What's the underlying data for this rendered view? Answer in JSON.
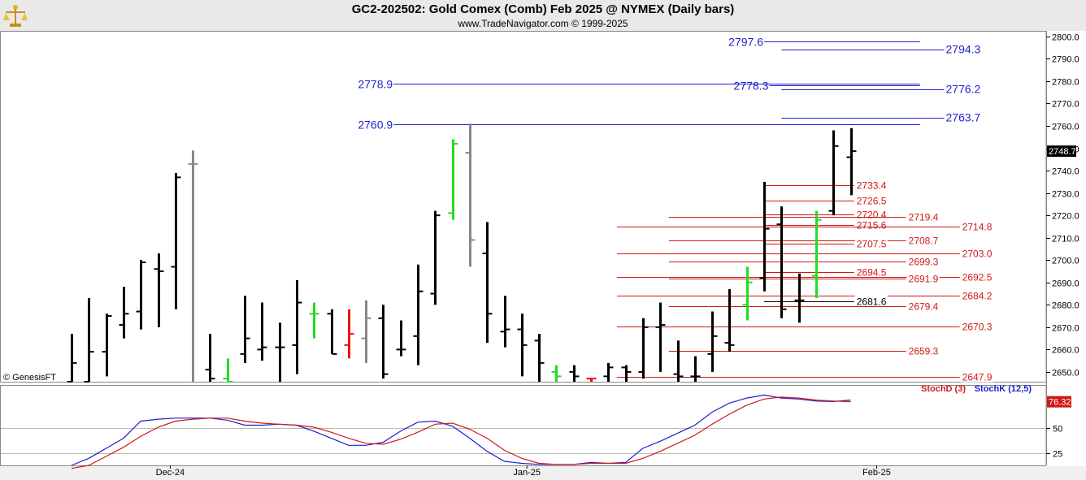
{
  "header": {
    "title": "GC2-202502:  Gold Comex (Comb) Feb 2025 @ NYMEX  (Daily bars)",
    "copyright": "www.TradeNavigator.com © 1999-2025",
    "watermark": "© GenesisFT"
  },
  "chart_data": {
    "type": "ohlc-bar",
    "ylim": [
      2645.6,
      2802.5
    ],
    "y_ticks": [
      2650.0,
      2660.0,
      2670.0,
      2680.0,
      2690.0,
      2700.0,
      2710.0,
      2720.0,
      2730.0,
      2740.0,
      2750.0,
      2760.0,
      2770.0,
      2780.0,
      2790.0,
      2800.0
    ],
    "last_price": "2748.7",
    "x_labels": [
      {
        "label": "Dec-24",
        "bar": 5.7
      },
      {
        "label": "Jan-25",
        "bar": 26.3
      },
      {
        "label": "Feb-25",
        "bar": 46.5
      }
    ],
    "colors": {
      "normal": "#000000",
      "up_signal": "#22dd22",
      "down_signal": "#ee1111",
      "neutral": "#888888",
      "blue": "#1f1fd0",
      "red": "#d01818"
    },
    "bars": [
      {
        "high": 2667,
        "low": 2645.6,
        "open": 2645.6,
        "close": 2654,
        "color": "normal"
      },
      {
        "high": 2683,
        "low": 2645.6,
        "open": 2645.6,
        "close": 2659,
        "color": "normal"
      },
      {
        "high": 2676,
        "low": 2648,
        "open": 2659,
        "close": 2675,
        "color": "normal"
      },
      {
        "high": 2688,
        "low": 2665,
        "open": 2671,
        "close": 2676,
        "color": "normal"
      },
      {
        "high": 2700,
        "low": 2669,
        "open": 2677,
        "close": 2699,
        "color": "normal"
      },
      {
        "high": 2703,
        "low": 2670,
        "open": 2696,
        "close": 2695,
        "color": "normal"
      },
      {
        "high": 2739,
        "low": 2678,
        "open": 2697,
        "close": 2737,
        "color": "normal"
      },
      {
        "high": 2749,
        "low": 2645.6,
        "open": 2743,
        "close": 2743,
        "color": "neutral"
      },
      {
        "high": 2667,
        "low": 2645.6,
        "open": 2651,
        "close": 2647,
        "color": "normal"
      },
      {
        "high": 2656,
        "low": 2645.6,
        "open": 2647,
        "close": 2645.6,
        "color": "up_signal"
      },
      {
        "high": 2684,
        "low": 2654,
        "open": 2658,
        "close": 2665,
        "color": "normal"
      },
      {
        "high": 2681,
        "low": 2655,
        "open": 2660,
        "close": 2661,
        "color": "normal"
      },
      {
        "high": 2672,
        "low": 2645.6,
        "open": 2661,
        "close": 2661,
        "color": "normal"
      },
      {
        "high": 2691,
        "low": 2649,
        "open": 2662,
        "close": 2681,
        "color": "normal"
      },
      {
        "high": 2681,
        "low": 2665,
        "open": 2676,
        "close": 2676,
        "color": "up_signal"
      },
      {
        "high": 2678,
        "low": 2658,
        "open": 2676,
        "close": 2658,
        "color": "normal"
      },
      {
        "high": 2678,
        "low": 2656,
        "open": 2662,
        "close": 2667,
        "color": "down_signal"
      },
      {
        "high": 2682,
        "low": 2654,
        "open": 2665,
        "close": 2674,
        "color": "neutral"
      },
      {
        "high": 2680,
        "low": 2647,
        "open": 2674,
        "close": 2649,
        "color": "normal"
      },
      {
        "high": 2673,
        "low": 2657,
        "open": 2660,
        "close": 2660,
        "color": "normal"
      },
      {
        "high": 2698,
        "low": 2653,
        "open": 2666,
        "close": 2686,
        "color": "normal"
      },
      {
        "high": 2722,
        "low": 2680,
        "open": 2685,
        "close": 2720,
        "color": "normal"
      },
      {
        "high": 2754,
        "low": 2718,
        "open": 2721,
        "close": 2752,
        "color": "up_signal"
      },
      {
        "high": 2761,
        "low": 2697,
        "open": 2748,
        "close": 2709,
        "color": "neutral"
      },
      {
        "high": 2717,
        "low": 2663,
        "open": 2703,
        "close": 2676,
        "color": "normal"
      },
      {
        "high": 2684,
        "low": 2661,
        "open": 2668,
        "close": 2669,
        "color": "normal"
      },
      {
        "high": 2676,
        "low": 2648,
        "open": 2669,
        "close": 2662,
        "color": "normal"
      },
      {
        "high": 2667,
        "low": 2645.6,
        "open": 2664,
        "close": 2654,
        "color": "normal"
      },
      {
        "high": 2653,
        "low": 2645.6,
        "open": 2650,
        "close": 2648,
        "color": "up_signal"
      },
      {
        "high": 2653,
        "low": 2645.6,
        "open": 2650,
        "close": 2648,
        "color": "normal"
      },
      {
        "high": 2647,
        "low": 2645.6,
        "open": 2647,
        "close": 2647,
        "color": "down_signal"
      },
      {
        "high": 2654,
        "low": 2645.6,
        "open": 2648,
        "close": 2652,
        "color": "normal"
      },
      {
        "high": 2653,
        "low": 2645.6,
        "open": 2652,
        "close": 2650,
        "color": "normal"
      },
      {
        "high": 2674,
        "low": 2647,
        "open": 2650,
        "close": 2670,
        "color": "normal"
      },
      {
        "high": 2681,
        "low": 2650,
        "open": 2670,
        "close": 2671,
        "color": "normal"
      },
      {
        "high": 2664,
        "low": 2645.6,
        "open": 2649,
        "close": 2648,
        "color": "normal"
      },
      {
        "high": 2657,
        "low": 2645.6,
        "open": 2648,
        "close": 2648,
        "color": "normal"
      },
      {
        "high": 2677,
        "low": 2650,
        "open": 2658,
        "close": 2666,
        "color": "normal"
      },
      {
        "high": 2687,
        "low": 2659,
        "open": 2663,
        "close": 2662,
        "color": "normal"
      },
      {
        "high": 2697,
        "low": 2673,
        "open": 2680,
        "close": 2690,
        "color": "up_signal"
      },
      {
        "high": 2735,
        "low": 2686,
        "open": 2692,
        "close": 2714,
        "color": "normal"
      },
      {
        "high": 2724,
        "low": 2674,
        "open": 2716,
        "close": 2678,
        "color": "normal"
      },
      {
        "high": 2694,
        "low": 2672,
        "open": 2682,
        "close": 2682,
        "color": "normal"
      },
      {
        "high": 2722,
        "low": 2683,
        "open": 2693,
        "close": 2718,
        "color": "up_signal"
      },
      {
        "high": 2758,
        "low": 2720,
        "open": 2722,
        "close": 2751,
        "color": "normal"
      },
      {
        "high": 2759,
        "low": 2729,
        "open": 2746,
        "close": 2748.7,
        "color": "normal"
      }
    ],
    "levels": [
      {
        "label": "2797.6",
        "value": 2797.6,
        "color": "blue",
        "from_bar": 40.0,
        "to_bar": 49.0,
        "label_side": "left"
      },
      {
        "label": "2794.3",
        "value": 2794.3,
        "color": "blue",
        "from_bar": 41.0,
        "to_bar": 50.4,
        "label_side": "right"
      },
      {
        "label": "2778.9",
        "value": 2778.9,
        "color": "blue",
        "from_bar": 18.6,
        "to_bar": 49.0,
        "label_side": "left"
      },
      {
        "label": "2778.3",
        "value": 2778.3,
        "color": "blue",
        "from_bar": 40.3,
        "to_bar": 49.0,
        "label_side": "left"
      },
      {
        "label": "2776.2",
        "value": 2776.2,
        "color": "blue",
        "from_bar": 41.0,
        "to_bar": 50.4,
        "label_side": "right"
      },
      {
        "label": "2760.9",
        "value": 2760.9,
        "color": "blue",
        "from_bar": 18.6,
        "to_bar": 49.0,
        "label_side": "left"
      },
      {
        "label": "2763.7",
        "value": 2763.7,
        "color": "blue",
        "from_bar": 41.0,
        "to_bar": 50.4,
        "label_side": "right"
      },
      {
        "label": "2733.4",
        "value": 2733.4,
        "color": "red",
        "from_bar": 40.0,
        "to_bar": 45.2,
        "label_side": "right"
      },
      {
        "label": "2726.5",
        "value": 2726.5,
        "color": "red",
        "from_bar": 40.0,
        "to_bar": 45.2,
        "label_side": "right"
      },
      {
        "label": "2720.4",
        "value": 2720.4,
        "color": "red",
        "from_bar": 40.0,
        "to_bar": 45.2,
        "label_side": "right"
      },
      {
        "label": "2719.4",
        "value": 2719.4,
        "color": "red",
        "from_bar": 34.5,
        "to_bar": 48.2,
        "label_side": "right"
      },
      {
        "label": "2715.6",
        "value": 2715.6,
        "color": "red",
        "from_bar": 40.0,
        "to_bar": 45.2,
        "label_side": "right"
      },
      {
        "label": "2714.8",
        "value": 2714.8,
        "color": "red",
        "from_bar": 31.5,
        "to_bar": 51.3,
        "label_side": "right"
      },
      {
        "label": "2708.7",
        "value": 2708.7,
        "color": "red",
        "from_bar": 34.5,
        "to_bar": 48.2,
        "label_side": "right"
      },
      {
        "label": "2707.5",
        "value": 2707.5,
        "color": "red",
        "from_bar": 40.0,
        "to_bar": 45.2,
        "label_side": "right"
      },
      {
        "label": "2703.0",
        "value": 2703.0,
        "color": "red",
        "from_bar": 31.5,
        "to_bar": 51.3,
        "label_side": "right"
      },
      {
        "label": "2699.3",
        "value": 2699.3,
        "color": "red",
        "from_bar": 34.5,
        "to_bar": 48.2,
        "label_side": "right"
      },
      {
        "label": "2694.5",
        "value": 2694.5,
        "color": "red",
        "from_bar": 40.0,
        "to_bar": 45.2,
        "label_side": "right"
      },
      {
        "label": "2692.5",
        "value": 2692.5,
        "color": "red",
        "from_bar": 31.5,
        "to_bar": 51.3,
        "label_side": "right"
      },
      {
        "label": "2691.9",
        "value": 2691.9,
        "color": "red",
        "from_bar": 34.5,
        "to_bar": 48.2,
        "label_side": "right"
      },
      {
        "label": "2684.2",
        "value": 2684.2,
        "color": "red",
        "from_bar": 31.5,
        "to_bar": 51.3,
        "label_side": "right"
      },
      {
        "label": "2681.6",
        "value": 2681.6,
        "color": "black",
        "from_bar": 40.0,
        "to_bar": 45.2,
        "label_side": "right"
      },
      {
        "label": "2679.4",
        "value": 2679.4,
        "color": "red",
        "from_bar": 34.5,
        "to_bar": 48.2,
        "label_side": "right"
      },
      {
        "label": "2670.3",
        "value": 2670.3,
        "color": "red",
        "from_bar": 31.5,
        "to_bar": 51.3,
        "label_side": "right"
      },
      {
        "label": "2659.3",
        "value": 2659.3,
        "color": "red",
        "from_bar": 34.5,
        "to_bar": 48.2,
        "label_side": "right"
      },
      {
        "label": "2647.9",
        "value": 2647.9,
        "color": "red",
        "from_bar": 31.5,
        "to_bar": 51.3,
        "label_side": "right"
      }
    ],
    "stochastic": {
      "legend": [
        "StochD (3)",
        "StochK (12,5)"
      ],
      "ylim": [
        13,
        93
      ],
      "y_ticks": [
        25,
        50
      ],
      "last_value": "76.32",
      "series": [
        {
          "name": "StochK (12,5)",
          "color": "blue",
          "values": [
            13,
            20,
            30,
            40,
            57,
            59,
            60,
            60,
            60,
            58,
            53,
            53,
            54,
            53,
            47,
            40,
            33,
            33,
            36,
            47,
            56,
            57,
            52,
            40,
            27,
            17,
            15,
            14,
            14,
            14,
            16,
            15,
            16,
            30,
            37,
            45,
            53,
            66,
            75,
            80,
            83,
            80,
            79,
            77,
            76.5,
            78
          ]
        },
        {
          "name": "StochD (3)",
          "color": "red",
          "values": [
            10,
            13,
            22,
            31,
            42,
            51,
            57,
            59,
            60,
            60,
            57,
            55,
            54,
            53,
            51,
            46,
            40,
            35,
            34,
            39,
            46,
            54,
            55,
            49,
            40,
            28,
            20,
            15,
            14,
            14,
            15,
            15,
            15,
            20,
            27,
            35,
            43,
            54,
            64,
            73,
            79,
            81,
            80,
            78,
            77,
            76.32
          ]
        }
      ]
    }
  }
}
